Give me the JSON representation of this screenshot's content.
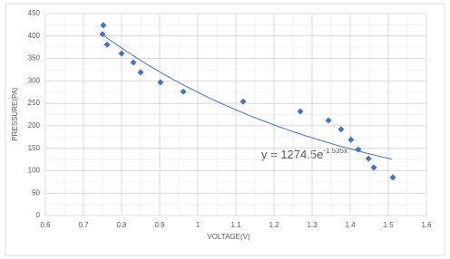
{
  "chart_data": {
    "type": "scatter",
    "x_label": "VOLTAGE(V)",
    "y_label": "PRESSURE(PA)",
    "series": [
      {
        "color": "#4472c4",
        "x": [
          0.752,
          0.75,
          0.762,
          0.8,
          0.831,
          0.85,
          0.902,
          0.962,
          1.119,
          1.269,
          1.343,
          1.376,
          1.402,
          1.421,
          1.448,
          1.462,
          1.512
        ],
        "values": [
          424,
          404,
          381,
          361,
          341,
          319,
          297,
          276,
          254,
          232,
          212,
          192,
          169,
          147,
          127,
          107,
          85
        ]
      }
    ],
    "trendline": {
      "equation": "y = 1274.5e",
      "exponent": "-1.535x",
      "a": 1274.5,
      "b": -1.535,
      "xlim": [
        0.75,
        1.51
      ],
      "color": "#4472c4"
    },
    "xlim": [
      0.6,
      1.6
    ],
    "xticks": [
      0.6,
      0.7,
      0.8,
      0.9,
      1,
      1.1,
      1.2,
      1.3,
      1.4,
      1.5,
      1.6
    ],
    "ylim": [
      0,
      450
    ],
    "yticks": [
      0,
      50,
      100,
      150,
      200,
      250,
      300,
      350,
      400,
      450
    ],
    "grid": true,
    "minor_grid": true
  }
}
